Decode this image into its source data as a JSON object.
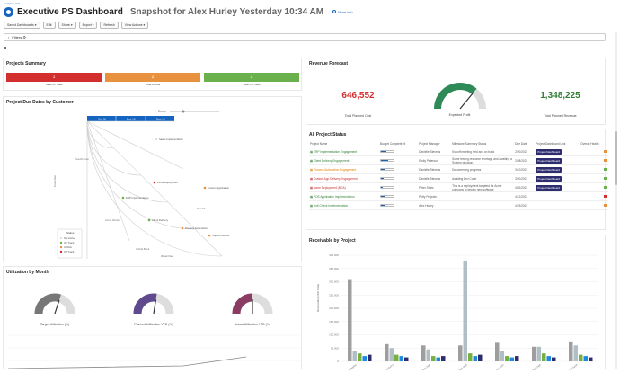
{
  "breadcrumb": "Analytics Hub",
  "header": {
    "title": "Executive PS Dashboard",
    "subtitle": "Snapshot for Alex Hurley Yesterday 10:34 AM",
    "more_info": "More info"
  },
  "toolbar": [
    "Saved Dashboards ▾",
    "Edit",
    "Share ▾",
    "Export ▾",
    "Refresh",
    "View Actions ▾"
  ],
  "filters_label": "Filters ⚙",
  "colors": {
    "red": "#d32f2f",
    "orange": "#e8923f",
    "green": "#6ab04c",
    "navy": "#2c2c6e",
    "blue": "#1565c0"
  },
  "projects_summary": {
    "title": "Projects Summary",
    "items": [
      {
        "value": "1",
        "label": "Total Off Track",
        "color": "#d32f2f"
      },
      {
        "value": "2",
        "label": "Total At Risk",
        "color": "#e8923f"
      },
      {
        "value": "3",
        "label": "Total On Track",
        "color": "#6ab04c"
      }
    ]
  },
  "due_dates": {
    "title": "Project Due Dates by Customer",
    "zoom_label": "Zoom",
    "header_cells": [
      "Oct 16",
      "Nov 16",
      "Dec 16"
    ],
    "axis_left": "Customer",
    "axis_bottom": "Week Due",
    "customers": [
      "Southcenter",
      "Acme Works",
      "Global Bank",
      "Pinehill"
    ],
    "points": [
      "SaaS Implementation",
      "Acme Deployment",
      "Custom Application",
      "ERP Implementation",
      "Client Delivery",
      "Process Automation",
      "Support Rollout"
    ],
    "legend_title": "Status",
    "legend": [
      {
        "label": "Not Active",
        "color": "#e0e0e0"
      },
      {
        "label": "On Track",
        "color": "#6ab04c"
      },
      {
        "label": "At Risk",
        "color": "#e8923f"
      },
      {
        "label": "Off Track",
        "color": "#d32f2f"
      }
    ]
  },
  "revenue_forecast": {
    "title": "Revenue Forecast",
    "cost": "646,552",
    "cost_label": "Total Planned Cost",
    "profit_label": "Expected Profit",
    "profit_level": 0.72,
    "revenue": "1,348,225",
    "revenue_label": "Total Planned Revenue"
  },
  "project_status": {
    "title": "All Project Status",
    "columns": [
      "Project Name",
      "Budget Complete %",
      "Project Manager",
      "Milestone Summary Status",
      "Due Date",
      "Project Dashboard Link",
      "Overall Health"
    ],
    "rows": [
      {
        "name": "ERP Implementation Engagement",
        "tone": "green",
        "pct": 0.45,
        "pm": "Danielle Stevens",
        "summary": "Kickoff meeting held and on track",
        "due": "2/20/2021",
        "link": "Project Dashboard",
        "flag": "#e8923f"
      },
      {
        "name": "Client Delivery Engagement",
        "tone": "green",
        "pct": 0.6,
        "pm": "Emily Peterson",
        "summary": "Some testing resource shortage and awaiting a System decision",
        "due": "2/28/2021",
        "link": "Project Dashboard",
        "flag": "#e8923f"
      },
      {
        "name": "Process Automation Engagement",
        "tone": "orange",
        "pct": 0.3,
        "pm": "Danielle Stevens",
        "summary": "Documenting progress",
        "due": "3/10/2021",
        "link": "Project Dashboard",
        "flag": "#6ab04c"
      },
      {
        "name": "Custom App Delivery Engagement",
        "tone": "red",
        "pct": 0.2,
        "pm": "Danielle Stevens",
        "summary": "Awaiting Dev Code",
        "due": "3/20/2021",
        "link": "Project Dashboard",
        "flag": "#6ab04c"
      },
      {
        "name": "Acme Deployment (MEA)",
        "tone": "red",
        "pct": 0.15,
        "pm": "Peter Smits",
        "summary": "This is a deployment targeted for Acme company to deploy new software",
        "due": "4/02/2021",
        "link": "Project Dashboard",
        "flag": "#6ab04c"
      },
      {
        "name": "POS Application Implementation",
        "tone": "green",
        "pct": 0.4,
        "pm": "Petty Projects",
        "summary": "",
        "due": "4/12/2021",
        "link": "",
        "flag": "#d32f2f"
      },
      {
        "name": "Unit Check Implementation",
        "tone": "green",
        "pct": 0.35,
        "pm": "Alex Hurley",
        "summary": "",
        "due": "4/23/2021",
        "link": "",
        "flag": "#e8923f"
      }
    ]
  },
  "utilization": {
    "title": "Utilization by Month",
    "gauges": [
      {
        "label": "Target Utilization (%)",
        "color": "#777777",
        "level": 0.6
      },
      {
        "label": "Planned Utilization YTD (%)",
        "color": "#5e4a8c",
        "level": 0.55
      },
      {
        "label": "Actual Utilization YTD (%)",
        "color": "#8a3c63",
        "level": 0.5
      }
    ]
  },
  "receivable": {
    "title": "Receivable by Project",
    "ylabel": "Receivable (USD Total)",
    "yticks": [
      "400,000",
      "350,000",
      "300,000",
      "250,000",
      "200,000",
      "150,000",
      "100,000",
      "50,000",
      "0"
    ],
    "xticks": [
      "Acme Deploy",
      "Client Delivery",
      "Custom App",
      "ERP Impl",
      "Process Auto",
      "POS App",
      "Unit Check"
    ]
  },
  "chart_data": {
    "type": "bar",
    "title": "Receivable by Project",
    "ylabel": "Receivable (USD Total)",
    "ylim": [
      0,
      400000
    ],
    "categories": [
      "1",
      "2",
      "3",
      "4",
      "5",
      "6",
      "7"
    ],
    "series": [
      {
        "values": [
          310000,
          65000,
          60000,
          60000,
          70000,
          55000,
          75000
        ],
        "color": "#9e9e9e"
      },
      {
        "values": [
          40000,
          50000,
          45000,
          380000,
          40000,
          55000,
          60000
        ],
        "color": "#b0bec5"
      },
      {
        "values": [
          30000,
          25000,
          20000,
          30000,
          20000,
          30000,
          25000
        ],
        "color": "#76b041"
      },
      {
        "values": [
          20000,
          20000,
          15000,
          20000,
          15000,
          20000,
          20000
        ],
        "color": "#1e88e5"
      },
      {
        "values": [
          25000,
          15000,
          20000,
          25000,
          20000,
          15000,
          15000
        ],
        "color": "#2c2c6e"
      }
    ]
  }
}
